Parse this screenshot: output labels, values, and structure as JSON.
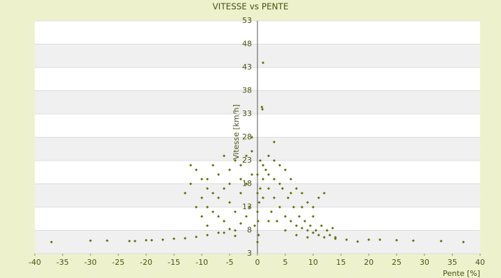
{
  "chart_data": {
    "type": "scatter",
    "title": "VITESSE vs PENTE",
    "x_label": "Pente [%]",
    "y_label": "Vitesse [km/h]",
    "color": "#5f6e0a",
    "grid": true,
    "xlim": [
      -40,
      40
    ],
    "xticks": [
      -40,
      -35,
      -30,
      -25,
      -20,
      -15,
      -10,
      -5,
      0,
      5,
      10,
      15,
      20,
      25,
      30,
      35,
      40
    ],
    "ylim": [
      3,
      53
    ],
    "yticks": [
      3,
      8,
      13,
      18,
      23,
      28,
      33,
      38,
      43,
      48,
      53
    ],
    "x": [
      -37,
      -30,
      -27,
      -23,
      -22,
      -20,
      -19,
      -17,
      -15,
      -13,
      -11,
      -9,
      -7,
      -5,
      -3,
      37,
      33,
      28,
      25,
      22,
      20,
      18,
      16,
      14,
      1,
      0.8,
      0.9,
      -1,
      3,
      -12,
      -11,
      -10,
      -9,
      -8,
      -7,
      -6,
      -5,
      -4,
      -3,
      -2,
      -1,
      0.5,
      1,
      2,
      3,
      4,
      5,
      6,
      7,
      8,
      9,
      10,
      11,
      12,
      -11,
      -10,
      -9,
      -8,
      -7,
      -6,
      -5,
      -4,
      -3,
      -2,
      -1,
      1,
      2,
      3,
      4,
      5,
      6,
      7,
      8,
      9,
      10,
      11,
      12,
      13,
      -10,
      -9,
      -6,
      -4,
      -2,
      0.3,
      0.5,
      1.5,
      2.5,
      3.5,
      4.5,
      5.5,
      6.5,
      7.5,
      8.5,
      9.5,
      10.5,
      11.5,
      12.5,
      13.5,
      14,
      -1.5,
      -0.5,
      0.2,
      0.1,
      0,
      0,
      0,
      0,
      -3,
      -5,
      -7,
      -8,
      2,
      3,
      4,
      6,
      8,
      10,
      1,
      2,
      5,
      7,
      9,
      -6,
      -4,
      -12,
      -13,
      -9
    ],
    "y": [
      5.5,
      5.8,
      5.8,
      5.7,
      5.7,
      5.9,
      5.9,
      6,
      6.2,
      6.3,
      6.6,
      7,
      7.5,
      8.3,
      9.5,
      5.5,
      5.7,
      5.8,
      5.9,
      6,
      6,
      5.6,
      6,
      6.2,
      44,
      34.5,
      34,
      28,
      27,
      22,
      21,
      19,
      17,
      22,
      20,
      24,
      21,
      23,
      22,
      24,
      25,
      23,
      22,
      24,
      23,
      22,
      21,
      19,
      17,
      16,
      14,
      13,
      15,
      16,
      13,
      11,
      9,
      12,
      15,
      17,
      14,
      12,
      16,
      18,
      20,
      19,
      17,
      15,
      13,
      11,
      10,
      9,
      8.5,
      8,
      7.5,
      7,
      6.5,
      7,
      15,
      19,
      10,
      8,
      11,
      14,
      17,
      21,
      12,
      10,
      17,
      15,
      13,
      11,
      10,
      9,
      8,
      9,
      8,
      8.5,
      6.5,
      13,
      9,
      7,
      10,
      5.5,
      12,
      16,
      20,
      19,
      18,
      11,
      16,
      20,
      19,
      18,
      16,
      13,
      11,
      15,
      10,
      8,
      7,
      6.5,
      7.5,
      6.8,
      18,
      16,
      13
    ]
  }
}
